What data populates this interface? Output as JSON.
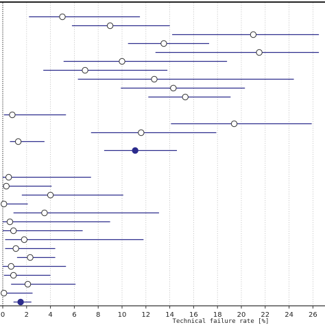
{
  "chart_data": {
    "type": "scatter",
    "subtype": "forest-plot",
    "xlabel": "Technical failure rate [%]",
    "xlim": [
      0,
      26.5
    ],
    "x_ticks": [
      0,
      2,
      4,
      6,
      8,
      10,
      12,
      14,
      16,
      18,
      20,
      22,
      24,
      26
    ],
    "grid": "vertical-dotted",
    "reference_line_x": 0,
    "colors": {
      "ci_line": "#2b2b8c",
      "marker_open_fill": "#ffffff",
      "marker_filled": "#2b2b8c",
      "grid": "#bbbbbb",
      "axis": "#333333",
      "frame": "#222222"
    },
    "rows": [
      {
        "y": 1,
        "point": 5.0,
        "lower": 2.2,
        "upper": 11.5,
        "marker": "open"
      },
      {
        "y": 2,
        "point": 9.0,
        "lower": 5.8,
        "upper": 14.0,
        "marker": "open"
      },
      {
        "y": 3,
        "point": 21.0,
        "lower": 14.2,
        "upper": 26.5,
        "marker": "open"
      },
      {
        "y": 4,
        "point": 13.5,
        "lower": 10.5,
        "upper": 17.3,
        "marker": "open"
      },
      {
        "y": 5,
        "point": 21.5,
        "lower": 12.8,
        "upper": 26.5,
        "marker": "open"
      },
      {
        "y": 6,
        "point": 10.0,
        "lower": 5.1,
        "upper": 18.8,
        "marker": "open"
      },
      {
        "y": 7,
        "point": 6.9,
        "lower": 3.4,
        "upper": 13.8,
        "marker": "open"
      },
      {
        "y": 8,
        "point": 12.7,
        "lower": 6.3,
        "upper": 24.4,
        "marker": "open"
      },
      {
        "y": 9,
        "point": 14.3,
        "lower": 9.9,
        "upper": 20.3,
        "marker": "open"
      },
      {
        "y": 10,
        "point": 15.3,
        "lower": 12.2,
        "upper": 19.1,
        "marker": "open"
      },
      {
        "y": 12,
        "point": 0.8,
        "lower": 0.1,
        "upper": 5.3,
        "marker": "open"
      },
      {
        "y": 13,
        "point": 19.4,
        "lower": 14.1,
        "upper": 25.9,
        "marker": "open"
      },
      {
        "y": 14,
        "point": 11.6,
        "lower": 7.4,
        "upper": 17.9,
        "marker": "open"
      },
      {
        "y": 15,
        "point": 1.3,
        "lower": 0.6,
        "upper": 3.5,
        "marker": "open"
      },
      {
        "y": 16,
        "point": 11.1,
        "lower": 8.5,
        "upper": 14.6,
        "marker": "filled"
      },
      {
        "y": 19,
        "point": 0.5,
        "lower": 0.0,
        "upper": 7.4,
        "marker": "open"
      },
      {
        "y": 20,
        "point": 0.3,
        "lower": 0.0,
        "upper": 4.1,
        "marker": "open"
      },
      {
        "y": 21,
        "point": 4.0,
        "lower": 1.6,
        "upper": 10.1,
        "marker": "open"
      },
      {
        "y": 22,
        "point": 0.1,
        "lower": 0.0,
        "upper": 2.1,
        "marker": "open"
      },
      {
        "y": 23,
        "point": 3.5,
        "lower": 0.9,
        "upper": 13.1,
        "marker": "open"
      },
      {
        "y": 24,
        "point": 0.6,
        "lower": 0.0,
        "upper": 9.0,
        "marker": "open"
      },
      {
        "y": 25,
        "point": 0.9,
        "lower": 0.0,
        "upper": 6.7,
        "marker": "open"
      },
      {
        "y": 26,
        "point": 1.8,
        "lower": 0.2,
        "upper": 11.8,
        "marker": "open"
      },
      {
        "y": 27,
        "point": 1.1,
        "lower": 0.2,
        "upper": 4.4,
        "marker": "open"
      },
      {
        "y": 28,
        "point": 2.3,
        "lower": 1.2,
        "upper": 4.4,
        "marker": "open"
      },
      {
        "y": 29,
        "point": 0.7,
        "lower": 0.0,
        "upper": 5.3,
        "marker": "open"
      },
      {
        "y": 30,
        "point": 0.9,
        "lower": 0.1,
        "upper": 4.0,
        "marker": "open"
      },
      {
        "y": 31,
        "point": 2.1,
        "lower": 0.7,
        "upper": 6.1,
        "marker": "open"
      },
      {
        "y": 32,
        "point": 0.1,
        "lower": 0.0,
        "upper": 2.5,
        "marker": "open"
      },
      {
        "y": 33,
        "point": 1.5,
        "lower": 0.9,
        "upper": 2.4,
        "marker": "filled"
      }
    ]
  }
}
